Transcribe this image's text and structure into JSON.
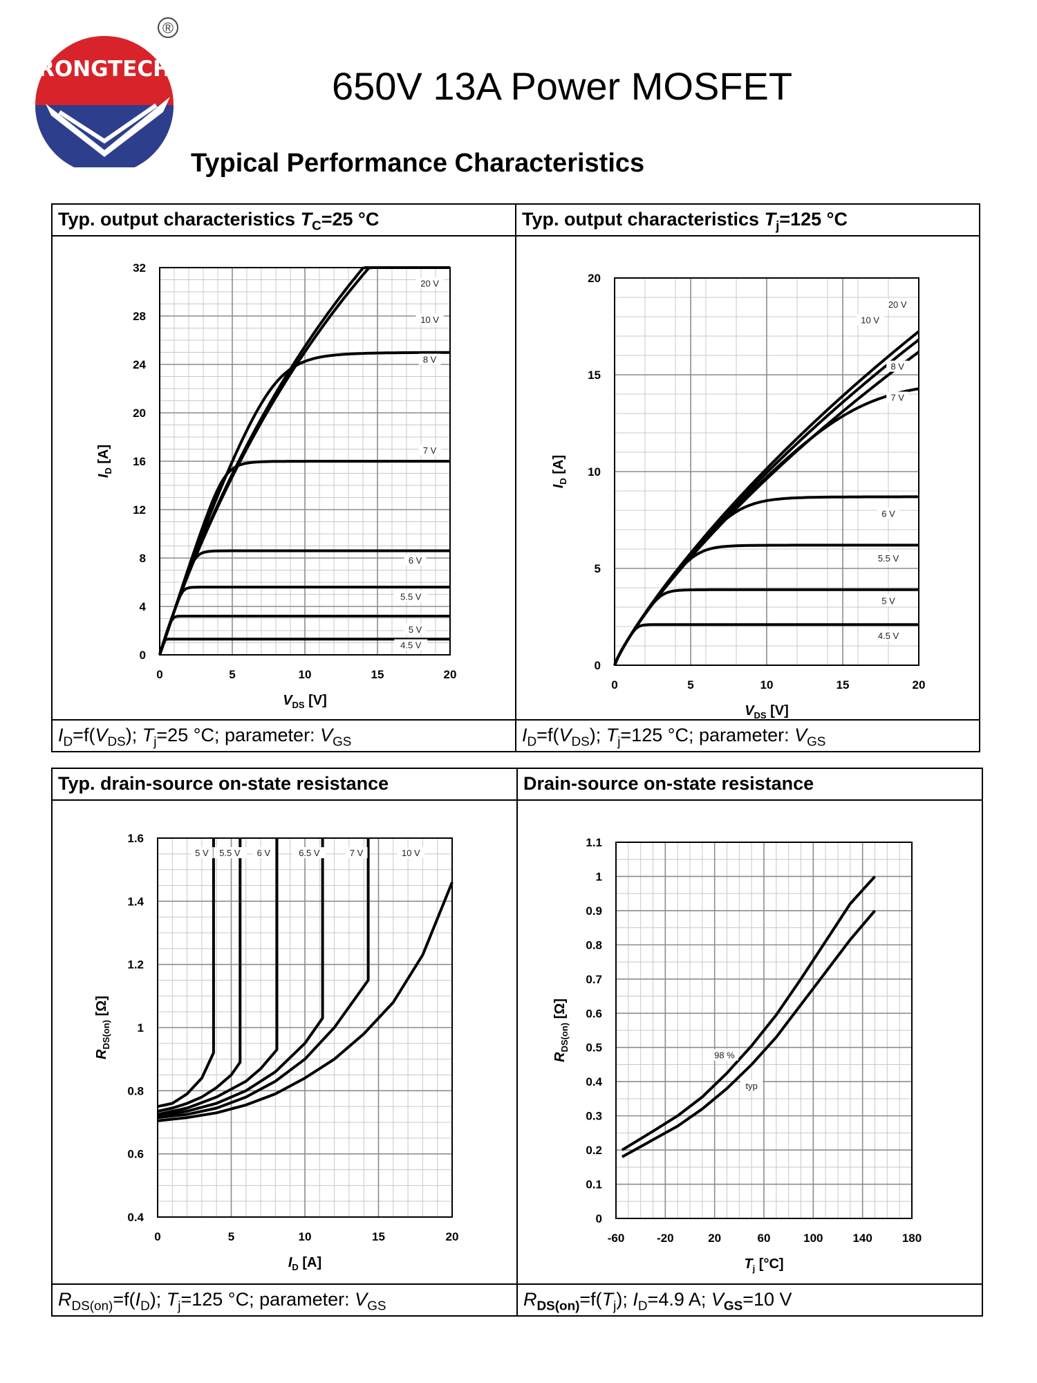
{
  "header": {
    "logo_text": "RONGTECH",
    "registered_mark": "®",
    "doc_title": "650V 13A Power MOSFET",
    "section_title": "Typical Performance Characteristics"
  },
  "colors": {
    "logo_red": "#d8232a",
    "logo_blue": "#2d3f8c",
    "curve": "#000000",
    "grid": "#9a9a9a"
  },
  "panels": {
    "p1": {
      "title_main": "Typ. output characteristics ",
      "title_sym": "T",
      "title_sub": "C",
      "title_tail": "=25 °C",
      "caption": {
        "a": "I",
        "a_sub": "D",
        "b": "=f(",
        "c": "V",
        "c_sub": "DS",
        "d": "); ",
        "e": "T",
        "e_sub": "j",
        "f": "=25 °C; parameter: ",
        "g": "V",
        "g_sub": "GS"
      }
    },
    "p2": {
      "title_main": "Typ. output characteristics ",
      "title_sym": "T",
      "title_sub": "j",
      "title_tail": "=125 °C",
      "caption": {
        "a": "I",
        "a_sub": "D",
        "b": "=f(",
        "c": "V",
        "c_sub": "DS",
        "d": "); ",
        "e": "T",
        "e_sub": "j",
        "f": "=125 °C; parameter: ",
        "g": "V",
        "g_sub": "GS"
      }
    },
    "p3": {
      "title": "Typ. drain-source on-state resistance",
      "caption": {
        "a": "R",
        "a_sub": "DS(on)",
        "b": "=f(",
        "c": "I",
        "c_sub": "D",
        "d": "); ",
        "e": "T",
        "e_sub": "j",
        "f": "=125 °C; parameter: ",
        "g": "V",
        "g_sub": "GS"
      }
    },
    "p4": {
      "title": "Drain-source on-state resistance",
      "caption": {
        "a": "R",
        "a_sub": "DS(on)",
        "b": "=f(",
        "c": "T",
        "c_sub": "j",
        "d": "); ",
        "e": "I",
        "e_sub": "D",
        "f": "=4.9 A; ",
        "g": "V",
        "g_sub": "GS",
        "h": "=10 V"
      }
    }
  },
  "chart_data": [
    {
      "type": "line",
      "title": "Typ. output characteristics Tc=25 °C",
      "xlabel": "VDS [V]",
      "ylabel": "ID [A]",
      "xlim": [
        0,
        20
      ],
      "ylim": [
        0,
        32
      ],
      "xticks": [
        0,
        5,
        10,
        15,
        20
      ],
      "yticks": [
        0,
        4,
        8,
        12,
        16,
        20,
        24,
        28,
        32
      ],
      "xminor": 1,
      "yminor": 1,
      "series": [
        {
          "name": "20 V",
          "sat": 0,
          "k": 0.062,
          "alpha": 0.94
        },
        {
          "name": "10 V",
          "sat": 0,
          "k": 0.062,
          "alpha": 0.95
        },
        {
          "name": "8 V",
          "sat": 25,
          "k": 0.062,
          "alpha": 1.0
        },
        {
          "name": "7 V",
          "sat": 16,
          "k": 0.062,
          "alpha": 1.05
        },
        {
          "name": "6 V",
          "sat": 8.6,
          "k": 0.062,
          "alpha": 1.0
        },
        {
          "name": "5.5 V",
          "sat": 5.6,
          "k": 0.062,
          "alpha": 1.0
        },
        {
          "name": "5 V",
          "sat": 3.2,
          "k": 0.062,
          "alpha": 1.0
        },
        {
          "name": "4.5 V",
          "sat": 1.3,
          "k": 0.062,
          "alpha": 1.0
        }
      ],
      "labels": [
        {
          "text": "20 V",
          "x": 18.6,
          "y": 30.5
        },
        {
          "text": "10 V",
          "x": 18.6,
          "y": 27.5
        },
        {
          "text": "8 V",
          "x": 18.6,
          "y": 24.2
        },
        {
          "text": "7 V",
          "x": 18.6,
          "y": 16.7
        },
        {
          "text": "6 V",
          "x": 17.6,
          "y": 7.6
        },
        {
          "text": "5.5 V",
          "x": 17.3,
          "y": 4.6
        },
        {
          "text": "5 V",
          "x": 17.6,
          "y": 1.9
        },
        {
          "text": "4.5 V",
          "x": 17.3,
          "y": 0.6
        }
      ]
    },
    {
      "type": "line",
      "title": "Typ. output characteristics Tj=125 °C",
      "xlabel": "VDS [V]",
      "ylabel": "ID [A]",
      "xlim": [
        0,
        20
      ],
      "ylim": [
        0,
        20
      ],
      "xticks": [
        0,
        5,
        10,
        15,
        20
      ],
      "yticks": [
        0,
        5,
        10,
        15,
        20
      ],
      "xminor": 2,
      "yminor": 1,
      "series": [
        {
          "name": "20 V",
          "sat": 0,
          "k": 0.025,
          "alpha": 0.87
        },
        {
          "name": "10 V",
          "sat": 0,
          "k": 0.025,
          "alpha": 0.86
        },
        {
          "name": "8 V",
          "sat": 0,
          "k": 0.025,
          "alpha": 0.845
        },
        {
          "name": "7 V",
          "sat": 14.7,
          "k": 0.025,
          "alpha": 0.85
        },
        {
          "name": "6 V",
          "sat": 8.7,
          "k": 0.025,
          "alpha": 0.86
        },
        {
          "name": "5.5 V",
          "sat": 6.2,
          "k": 0.025,
          "alpha": 0.86
        },
        {
          "name": "5 V",
          "sat": 3.9,
          "k": 0.025,
          "alpha": 0.86
        },
        {
          "name": "4.5 V",
          "sat": 2.1,
          "k": 0.025,
          "alpha": 0.86
        }
      ],
      "labels": [
        {
          "text": "20 V",
          "x": 18.6,
          "y": 18.5
        },
        {
          "text": "10 V",
          "x": 16.8,
          "y": 17.7
        },
        {
          "text": "8 V",
          "x": 18.6,
          "y": 15.3
        },
        {
          "text": "7 V",
          "x": 18.6,
          "y": 13.7
        },
        {
          "text": "6 V",
          "x": 18.0,
          "y": 7.7
        },
        {
          "text": "5.5 V",
          "x": 18.0,
          "y": 5.4
        },
        {
          "text": "5 V",
          "x": 18.0,
          "y": 3.2
        },
        {
          "text": "4.5 V",
          "x": 18.0,
          "y": 1.4
        }
      ]
    },
    {
      "type": "line",
      "title": "Typ. drain-source on-state resistance",
      "xlabel": "ID [A]",
      "ylabel": "RDS(on) [Ω]",
      "xlim": [
        0,
        20
      ],
      "ylim": [
        0.4,
        1.6
      ],
      "xticks": [
        0,
        5,
        10,
        15,
        20
      ],
      "yticks": [
        0.4,
        0.6,
        0.8,
        1,
        1.2,
        1.4,
        1.6
      ],
      "xminor": 1,
      "yminor": 0.05,
      "series": [
        {
          "name": "5 V",
          "points": [
            [
              0,
              0.75
            ],
            [
              1,
              0.76
            ],
            [
              2,
              0.79
            ],
            [
              3,
              0.84
            ],
            [
              3.8,
              0.92
            ],
            [
              3.8,
              1.6
            ]
          ]
        },
        {
          "name": "5.5 V",
          "points": [
            [
              0,
              0.735
            ],
            [
              1,
              0.745
            ],
            [
              2,
              0.76
            ],
            [
              3,
              0.78
            ],
            [
              4,
              0.81
            ],
            [
              5,
              0.85
            ],
            [
              5.6,
              0.89
            ],
            [
              5.6,
              1.6
            ]
          ]
        },
        {
          "name": "6 V",
          "points": [
            [
              0,
              0.725
            ],
            [
              2,
              0.745
            ],
            [
              4,
              0.78
            ],
            [
              6,
              0.83
            ],
            [
              7,
              0.87
            ],
            [
              8.1,
              0.93
            ],
            [
              8.1,
              1.6
            ]
          ]
        },
        {
          "name": "6.5 V",
          "points": [
            [
              0,
              0.72
            ],
            [
              2,
              0.735
            ],
            [
              4,
              0.76
            ],
            [
              6,
              0.8
            ],
            [
              8,
              0.86
            ],
            [
              10,
              0.95
            ],
            [
              11.2,
              1.03
            ],
            [
              11.2,
              1.6
            ]
          ]
        },
        {
          "name": "7 V",
          "points": [
            [
              0,
              0.715
            ],
            [
              2,
              0.725
            ],
            [
              4,
              0.745
            ],
            [
              6,
              0.78
            ],
            [
              8,
              0.83
            ],
            [
              10,
              0.9
            ],
            [
              12,
              1.0
            ],
            [
              14.3,
              1.15
            ],
            [
              14.3,
              1.6
            ]
          ]
        },
        {
          "name": "10 V",
          "points": [
            [
              0,
              0.705
            ],
            [
              2,
              0.715
            ],
            [
              4,
              0.73
            ],
            [
              6,
              0.755
            ],
            [
              8,
              0.79
            ],
            [
              10,
              0.84
            ],
            [
              12,
              0.9
            ],
            [
              14,
              0.98
            ],
            [
              16,
              1.08
            ],
            [
              18,
              1.23
            ],
            [
              20,
              1.46
            ]
          ]
        }
      ],
      "labels": [
        {
          "text": "5 V",
          "x": 3.0,
          "y": 1.545
        },
        {
          "text": "5.5 V",
          "x": 4.9,
          "y": 1.545
        },
        {
          "text": "6 V",
          "x": 7.2,
          "y": 1.545
        },
        {
          "text": "6.5 V",
          "x": 10.3,
          "y": 1.545
        },
        {
          "text": "7 V",
          "x": 13.5,
          "y": 1.545
        },
        {
          "text": "10 V",
          "x": 17.2,
          "y": 1.545
        }
      ]
    },
    {
      "type": "line",
      "title": "Drain-source on-state resistance",
      "xlabel": "Tj [°C]",
      "ylabel": "RDS(on) [Ω]",
      "xlim": [
        -60,
        180
      ],
      "ylim": [
        0,
        1.1
      ],
      "xticks": [
        -60,
        -20,
        20,
        60,
        100,
        140,
        180
      ],
      "yticks": [
        0,
        0.1,
        0.2,
        0.3,
        0.4,
        0.5,
        0.6,
        0.7,
        0.8,
        0.9,
        1,
        1.1
      ],
      "xminor": 10,
      "yminor": 0.05,
      "series": [
        {
          "name": "98 %",
          "points": [
            [
              -55,
              0.2
            ],
            [
              -30,
              0.255
            ],
            [
              -10,
              0.3
            ],
            [
              10,
              0.355
            ],
            [
              30,
              0.425
            ],
            [
              50,
              0.505
            ],
            [
              70,
              0.595
            ],
            [
              90,
              0.7
            ],
            [
              110,
              0.81
            ],
            [
              130,
              0.92
            ],
            [
              150,
              1.0
            ]
          ]
        },
        {
          "name": "typ",
          "points": [
            [
              -55,
              0.18
            ],
            [
              -30,
              0.23
            ],
            [
              -10,
              0.27
            ],
            [
              10,
              0.32
            ],
            [
              30,
              0.38
            ],
            [
              50,
              0.45
            ],
            [
              70,
              0.53
            ],
            [
              90,
              0.625
            ],
            [
              110,
              0.72
            ],
            [
              130,
              0.815
            ],
            [
              150,
              0.9
            ]
          ]
        }
      ],
      "labels": [
        {
          "text": "98 %",
          "x": 28,
          "y": 0.47
        },
        {
          "text": "typ",
          "x": 50,
          "y": 0.38
        }
      ]
    }
  ]
}
